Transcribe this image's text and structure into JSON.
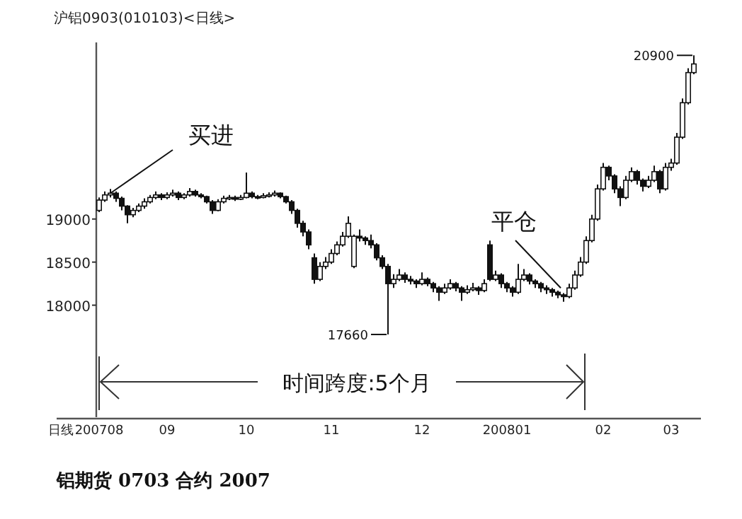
{
  "chart_data": {
    "type": "candlestick",
    "title": "沪铝0903(010103)<日线>",
    "xlabel": "日线",
    "categories": [
      "200708",
      null,
      null,
      null,
      null,
      null,
      null,
      null,
      null,
      null,
      null,
      null,
      "09",
      null,
      null,
      null,
      null,
      null,
      null,
      null,
      null,
      null,
      null,
      null,
      null,
      null,
      "10",
      null,
      null,
      null,
      null,
      null,
      null,
      null,
      null,
      null,
      null,
      null,
      null,
      null,
      null,
      "11",
      null,
      null,
      null,
      null,
      null,
      null,
      null,
      null,
      null,
      null,
      null,
      null,
      null,
      null,
      null,
      "12",
      null,
      null,
      null,
      null,
      null,
      null,
      null,
      null,
      null,
      null,
      null,
      null,
      null,
      null,
      "200801",
      null,
      null,
      null,
      null,
      null,
      null,
      null,
      null,
      null,
      null,
      null,
      null,
      null,
      null,
      null,
      null,
      "02",
      null,
      null,
      null,
      null,
      null,
      null,
      null,
      null,
      null,
      null,
      null,
      "03",
      null,
      null,
      null,
      null
    ],
    "ohlc": [
      [
        19100,
        19250,
        19080,
        19220
      ],
      [
        19220,
        19320,
        19200,
        19280
      ],
      [
        19280,
        19350,
        19250,
        19300
      ],
      [
        19300,
        19320,
        19200,
        19240
      ],
      [
        19240,
        19260,
        19100,
        19150
      ],
      [
        19150,
        19160,
        18950,
        19050
      ],
      [
        19050,
        19130,
        19020,
        19100
      ],
      [
        19100,
        19180,
        19080,
        19150
      ],
      [
        19150,
        19240,
        19120,
        19200
      ],
      [
        19200,
        19280,
        19180,
        19250
      ],
      [
        19250,
        19320,
        19230,
        19280
      ],
      [
        19280,
        19300,
        19220,
        19250
      ],
      [
        19250,
        19310,
        19230,
        19280
      ],
      [
        19280,
        19340,
        19260,
        19300
      ],
      [
        19300,
        19320,
        19220,
        19250
      ],
      [
        19250,
        19300,
        19230,
        19280
      ],
      [
        19280,
        19360,
        19260,
        19320
      ],
      [
        19320,
        19340,
        19260,
        19280
      ],
      [
        19280,
        19300,
        19240,
        19260
      ],
      [
        19260,
        19270,
        19180,
        19200
      ],
      [
        19200,
        19220,
        19060,
        19100
      ],
      [
        19100,
        19230,
        19090,
        19200
      ],
      [
        19200,
        19270,
        19180,
        19240
      ],
      [
        19240,
        19280,
        19220,
        19250
      ],
      [
        19250,
        19270,
        19210,
        19230
      ],
      [
        19230,
        19280,
        19220,
        19250
      ],
      [
        19250,
        19540,
        19240,
        19300
      ],
      [
        19300,
        19320,
        19240,
        19260
      ],
      [
        19260,
        19280,
        19230,
        19250
      ],
      [
        19250,
        19300,
        19240,
        19270
      ],
      [
        19270,
        19310,
        19250,
        19280
      ],
      [
        19280,
        19330,
        19260,
        19300
      ],
      [
        19300,
        19310,
        19240,
        19260
      ],
      [
        19260,
        19270,
        19180,
        19200
      ],
      [
        19200,
        19220,
        19060,
        19100
      ],
      [
        19100,
        19120,
        18900,
        18950
      ],
      [
        18950,
        18980,
        18800,
        18850
      ],
      [
        18850,
        18880,
        18650,
        18700
      ],
      [
        18550,
        18600,
        18250,
        18300
      ],
      [
        18300,
        18500,
        18280,
        18450
      ],
      [
        18450,
        18560,
        18420,
        18500
      ],
      [
        18500,
        18650,
        18480,
        18600
      ],
      [
        18600,
        18740,
        18580,
        18700
      ],
      [
        18700,
        18850,
        18680,
        18800
      ],
      [
        18800,
        19030,
        18780,
        18950
      ],
      [
        18450,
        18820,
        18430,
        18800
      ],
      [
        18800,
        18880,
        18740,
        18780
      ],
      [
        18780,
        18800,
        18700,
        18750
      ],
      [
        18750,
        18820,
        18660,
        18700
      ],
      [
        18700,
        18720,
        18520,
        18550
      ],
      [
        18550,
        18580,
        18420,
        18450
      ],
      [
        18450,
        18480,
        17660,
        18250
      ],
      [
        18250,
        18360,
        18200,
        18300
      ],
      [
        18300,
        18420,
        18280,
        18350
      ],
      [
        18350,
        18380,
        18260,
        18300
      ],
      [
        18300,
        18340,
        18240,
        18280
      ],
      [
        18280,
        18300,
        18200,
        18250
      ],
      [
        18250,
        18380,
        18230,
        18300
      ],
      [
        18300,
        18320,
        18220,
        18250
      ],
      [
        18250,
        18270,
        18150,
        18200
      ],
      [
        18200,
        18220,
        18050,
        18150
      ],
      [
        18150,
        18250,
        18130,
        18200
      ],
      [
        18200,
        18300,
        18180,
        18250
      ],
      [
        18250,
        18270,
        18160,
        18200
      ],
      [
        18200,
        18220,
        18050,
        18150
      ],
      [
        18150,
        18230,
        18130,
        18180
      ],
      [
        18180,
        18260,
        18160,
        18200
      ],
      [
        18200,
        18220,
        18120,
        18170
      ],
      [
        18170,
        18300,
        18150,
        18250
      ],
      [
        18700,
        18750,
        18280,
        18300
      ],
      [
        18300,
        18400,
        18280,
        18350
      ],
      [
        18350,
        18370,
        18200,
        18250
      ],
      [
        18250,
        18270,
        18150,
        18200
      ],
      [
        18200,
        18220,
        18100,
        18150
      ],
      [
        18150,
        18480,
        18130,
        18300
      ],
      [
        18300,
        18420,
        18280,
        18350
      ],
      [
        18350,
        18370,
        18240,
        18280
      ],
      [
        18280,
        18300,
        18200,
        18250
      ],
      [
        18250,
        18270,
        18150,
        18200
      ],
      [
        18200,
        18230,
        18130,
        18180
      ],
      [
        18180,
        18200,
        18100,
        18150
      ],
      [
        18150,
        18170,
        18080,
        18120
      ],
      [
        18120,
        18140,
        18040,
        18100
      ],
      [
        18100,
        18250,
        18080,
        18200
      ],
      [
        18200,
        18400,
        18180,
        18350
      ],
      [
        18350,
        18560,
        18330,
        18500
      ],
      [
        18500,
        18800,
        18480,
        18750
      ],
      [
        18750,
        19050,
        18730,
        19000
      ],
      [
        19000,
        19400,
        18980,
        19350
      ],
      [
        19350,
        19650,
        19330,
        19600
      ],
      [
        19600,
        19620,
        19450,
        19500
      ],
      [
        19500,
        19520,
        19300,
        19350
      ],
      [
        19350,
        19380,
        19150,
        19250
      ],
      [
        19250,
        19500,
        19230,
        19450
      ],
      [
        19450,
        19600,
        19430,
        19550
      ],
      [
        19550,
        19570,
        19400,
        19450
      ],
      [
        19450,
        19470,
        19320,
        19380
      ],
      [
        19380,
        19500,
        19360,
        19450
      ],
      [
        19450,
        19620,
        19430,
        19550
      ],
      [
        19550,
        19570,
        19300,
        19350
      ],
      [
        19350,
        19650,
        19330,
        19600
      ],
      [
        19600,
        19700,
        19560,
        19650
      ],
      [
        19650,
        20000,
        19630,
        19950
      ],
      [
        19950,
        20400,
        19930,
        20350
      ],
      [
        20350,
        20750,
        20330,
        20700
      ],
      [
        20700,
        20900,
        20680,
        20800
      ]
    ],
    "ylim": [
      16700,
      21050
    ],
    "yticks": [
      18000,
      18500,
      19000
    ],
    "annotations": [
      {
        "text": "买进",
        "y": 19300
      },
      {
        "text": "平仓",
        "y": 18200
      },
      "时间跨度:5个月",
      "20900",
      "17660",
      "铝期货 0703 合约 2007"
    ]
  }
}
